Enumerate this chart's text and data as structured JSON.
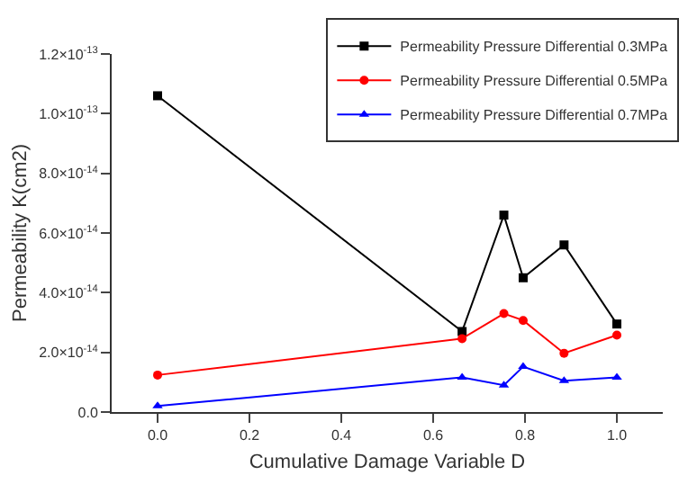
{
  "chart_data": {
    "type": "line",
    "xlabel": "Cumulative Damage Variable D",
    "ylabel": "Permeability K(cm2)",
    "series": [
      {
        "name": "Permeability Pressure Differential 0.3MPa",
        "color": "#000000",
        "marker": "square",
        "x": [
          0.0,
          0.663,
          0.754,
          0.796,
          0.885,
          1.0
        ],
        "values": [
          1.06e-13,
          2.7e-14,
          6.6e-14,
          4.5e-14,
          5.6e-14,
          2.95e-14
        ]
      },
      {
        "name": "Permeability Pressure Differential 0.5MPa",
        "color": "#ff0000",
        "marker": "circle",
        "x": [
          0.0,
          0.663,
          0.754,
          0.796,
          0.885,
          1.0
        ],
        "values": [
          1.24e-14,
          2.46e-14,
          3.3e-14,
          3.07e-14,
          1.97e-14,
          2.58e-14
        ]
      },
      {
        "name": "Permeability Pressure Differential 0.7MPa",
        "color": "#0000ff",
        "marker": "triangle",
        "x": [
          0.0,
          0.663,
          0.754,
          0.796,
          0.885,
          1.0
        ],
        "values": [
          2e-15,
          1.16e-14,
          9e-15,
          1.52e-14,
          1.05e-14,
          1.16e-14
        ]
      }
    ],
    "xlim": [
      -0.1,
      1.1
    ],
    "xticks": [
      {
        "value": 0,
        "label": "0.0"
      },
      0.2,
      0.4,
      0.6,
      0.8,
      {
        "value": 1,
        "label": "1.0"
      }
    ],
    "ylim": [
      0,
      1.2e-13
    ],
    "yticks": [
      {
        "value": 0,
        "label": "0.0"
      },
      {
        "value": 2e-14,
        "label": "2.0×10$^{-14}$"
      },
      {
        "value": 4e-14,
        "label": "4.0×10$^{-14}$"
      },
      {
        "value": 6e-14,
        "label": "6.0×10$^{-14}$"
      },
      {
        "value": 8e-14,
        "label": "8.0×10$^{-14}$"
      },
      {
        "value": 1e-13,
        "label": "1.0×10$^{-13}$"
      },
      {
        "value": 1.2e-13,
        "label": "1.2×10$^{-13}$"
      }
    ],
    "legend": "top right",
    "line_style": "solid"
  }
}
